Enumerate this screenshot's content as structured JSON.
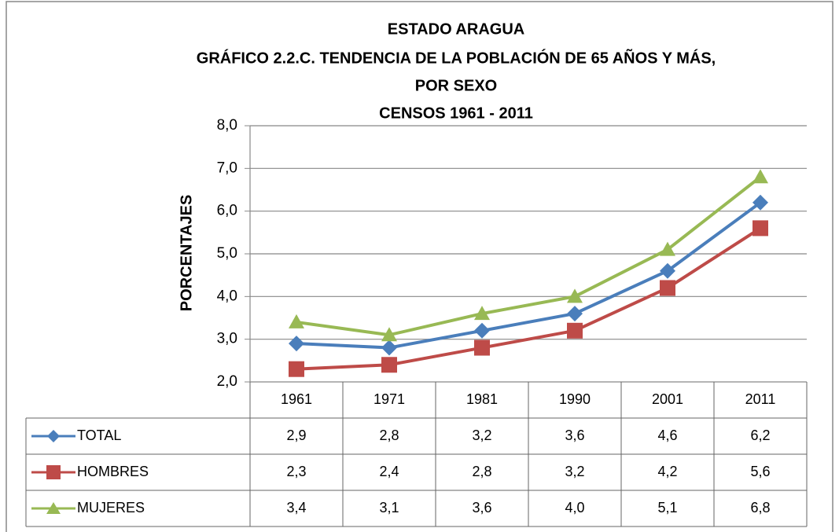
{
  "chart_data": {
    "type": "line",
    "title": [
      "ESTADO ARAGUA",
      "GRÁFICO 2.2.C. TENDENCIA  DE LA POBLACIÓN DE 65  AÑOS Y MÁS,",
      "POR SEXO",
      "CENSOS 1961 - 2011"
    ],
    "y_label": "PORCENTAJES",
    "categories": [
      "1961",
      "1971",
      "1981",
      "1990",
      "2001",
      "2011"
    ],
    "series": [
      {
        "name": "TOTAL",
        "color": "#4a7ebb",
        "marker": "diamond",
        "values": [
          2.9,
          2.8,
          3.2,
          3.6,
          4.6,
          6.2
        ],
        "value_labels": [
          "2,9",
          "2,8",
          "3,2",
          "3,6",
          "4,6",
          "6,2"
        ]
      },
      {
        "name": "HOMBRES",
        "color": "#be4b48",
        "marker": "square",
        "values": [
          2.3,
          2.4,
          2.8,
          3.2,
          4.2,
          5.6
        ],
        "value_labels": [
          "2,3",
          "2,4",
          "2,8",
          "3,2",
          "4,2",
          "5,6"
        ]
      },
      {
        "name": "MUJERES",
        "color": "#98b954",
        "marker": "triangle",
        "values": [
          3.4,
          3.1,
          3.6,
          4.0,
          5.1,
          6.8
        ],
        "value_labels": [
          "3,4",
          "3,1",
          "3,6",
          "4,0",
          "5,1",
          "6,8"
        ]
      }
    ],
    "ylim": [
      2,
      8
    ],
    "yticks": [
      {
        "value": 2,
        "label": "2,0"
      },
      {
        "value": 3,
        "label": "3,0"
      },
      {
        "value": 4,
        "label": "4,0"
      },
      {
        "value": 5,
        "label": "5,0"
      },
      {
        "value": 6,
        "label": "6,0"
      },
      {
        "value": 7,
        "label": "7,0"
      },
      {
        "value": 8,
        "label": "8,0"
      }
    ],
    "grid": true
  }
}
